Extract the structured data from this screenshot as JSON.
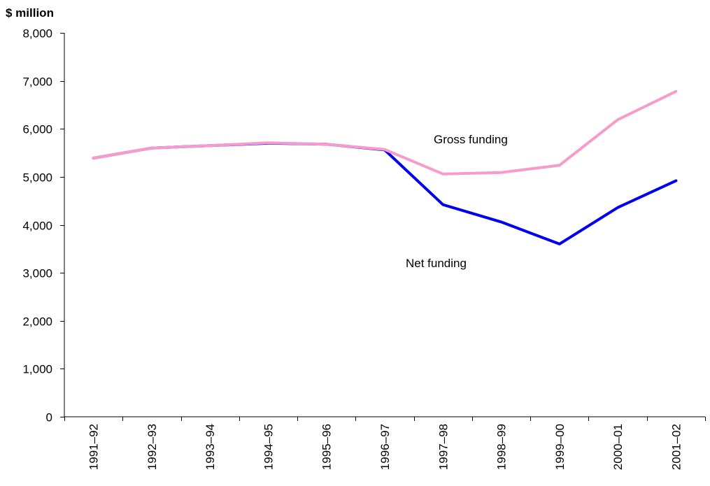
{
  "chart_data": {
    "type": "line",
    "unit_label": "$ million",
    "categories": [
      "1991–92",
      "1992–93",
      "1993–94",
      "1994–95",
      "1995–96",
      "1996–97",
      "1997–98",
      "1998–99",
      "1999–00",
      "2000–01",
      "2001–02"
    ],
    "y_ticks": [
      "0",
      "1,000",
      "2,000",
      "3,000",
      "4,000",
      "5,000",
      "6,000",
      "7,000",
      "8,000"
    ],
    "ylim": [
      0,
      8000
    ],
    "grid": false,
    "series": [
      {
        "name": "Net funding",
        "color": "#0000ee",
        "values": [
          5390,
          5600,
          5650,
          5700,
          5680,
          5560,
          4420,
          4060,
          3600,
          4360,
          4920
        ]
      },
      {
        "name": "Gross funding",
        "color": "#f79bcc",
        "values": [
          5390,
          5600,
          5650,
          5710,
          5680,
          5570,
          5060,
          5090,
          5240,
          6190,
          6780
        ]
      }
    ],
    "annotations": {
      "gross": "Gross funding",
      "net": "Net funding"
    }
  }
}
